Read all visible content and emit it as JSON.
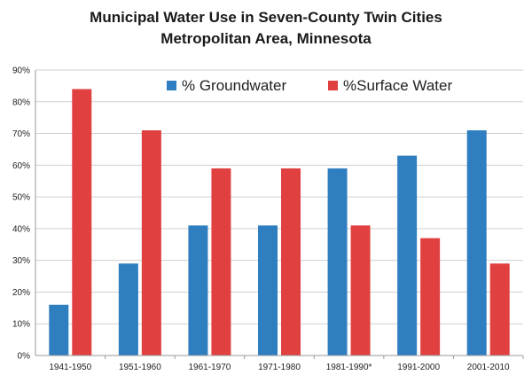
{
  "colors": {
    "groundwater": "#2f7ec0",
    "surface": "#e04040",
    "grid": "#d0d0d0",
    "axis": "#9a9a9a"
  },
  "chart_data": {
    "type": "bar",
    "title": [
      "Municipal Water Use in Seven-County Twin Cities",
      "Metropolitan Area, Minnesota"
    ],
    "xlabel": "",
    "ylabel": "",
    "ylim": [
      0,
      90
    ],
    "yticks": [
      0,
      10,
      20,
      30,
      40,
      50,
      60,
      70,
      80,
      90
    ],
    "ytick_labels": [
      "0%",
      "10%",
      "20%",
      "30%",
      "40%",
      "50%",
      "60%",
      "70%",
      "80%",
      "90%"
    ],
    "grid": true,
    "legend_position": "top",
    "categories": [
      "1941-1950",
      "1951-1960",
      "1961-1970",
      "1971-1980",
      "1981-1990*",
      "1991-2000",
      "2001-2010"
    ],
    "series": [
      {
        "name": "% Groundwater",
        "color": "#2f7ec0",
        "values": [
          16,
          29,
          41,
          41,
          59,
          63,
          71
        ]
      },
      {
        "name": "%Surface Water",
        "color": "#e04040",
        "values": [
          84,
          71,
          59,
          59,
          41,
          37,
          29
        ]
      }
    ]
  }
}
